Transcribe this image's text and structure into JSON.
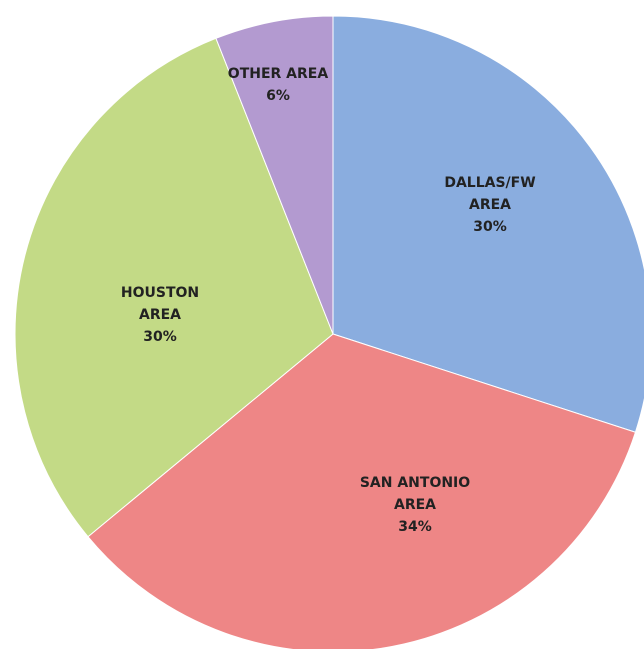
{
  "chart_data": {
    "type": "pie",
    "categories": [
      "DALLAS/FW AREA",
      "SAN ANTONIO AREA",
      "HOUSTON AREA",
      "OTHER AREA"
    ],
    "values": [
      30,
      34,
      30,
      6
    ],
    "value_labels": [
      "30%",
      "34%",
      "30%",
      "6%"
    ],
    "colors": [
      "#8aaddf",
      "#ee8686",
      "#c3da86",
      "#b39ad0"
    ],
    "start_angle": 0,
    "direction": "clockwise"
  }
}
